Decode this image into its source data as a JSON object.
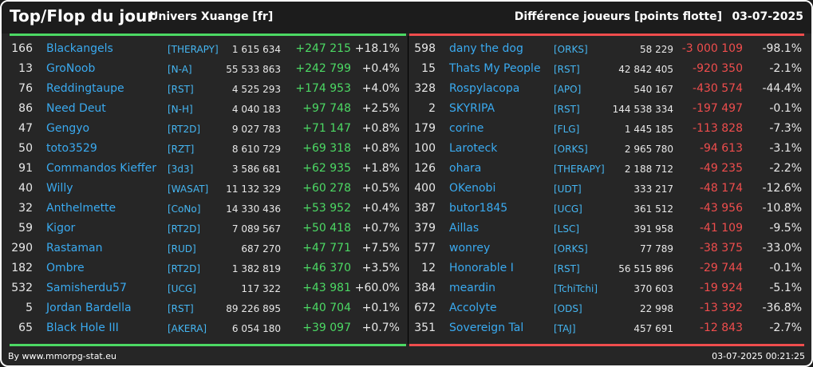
{
  "header": {
    "title": "Top/Flop du jour",
    "universe": "Univers Xuange [fr]",
    "metric": "Différence joueurs [points flotte]",
    "date": "03-07-2025"
  },
  "colors": {
    "positive": "#4cd964",
    "negative": "#ef4d4d",
    "name": "#3aaaf0",
    "background": "#262626"
  },
  "top": [
    {
      "rank": "166",
      "name": "Blackangels",
      "alliance": "[THERAPY]",
      "points": "1 615 634",
      "diff": "+247 215",
      "pct": "+18.1%"
    },
    {
      "rank": "13",
      "name": "GroNoob",
      "alliance": "[N-A]",
      "points": "55 533 863",
      "diff": "+242 799",
      "pct": "+0.4%"
    },
    {
      "rank": "76",
      "name": "Reddingtaupe",
      "alliance": "[RST]",
      "points": "4 525 293",
      "diff": "+174 953",
      "pct": "+4.0%"
    },
    {
      "rank": "86",
      "name": "Need Deut",
      "alliance": "[N-H]",
      "points": "4 040 183",
      "diff": "+97 748",
      "pct": "+2.5%"
    },
    {
      "rank": "47",
      "name": "Gengyo",
      "alliance": "[RT2D]",
      "points": "9 027 783",
      "diff": "+71 147",
      "pct": "+0.8%"
    },
    {
      "rank": "50",
      "name": "toto3529",
      "alliance": "[RZT]",
      "points": "8 610 729",
      "diff": "+69 318",
      "pct": "+0.8%"
    },
    {
      "rank": "91",
      "name": "Commandos Kieffer",
      "alliance": "[3d3]",
      "points": "3 586 681",
      "diff": "+62 935",
      "pct": "+1.8%"
    },
    {
      "rank": "40",
      "name": "Willy",
      "alliance": "[WASAT]",
      "points": "11 132 329",
      "diff": "+60 278",
      "pct": "+0.5%"
    },
    {
      "rank": "32",
      "name": "Anthelmette",
      "alliance": "[CoNo]",
      "points": "14 330 436",
      "diff": "+53 952",
      "pct": "+0.4%"
    },
    {
      "rank": "59",
      "name": "Kigor",
      "alliance": "[RT2D]",
      "points": "7 089 567",
      "diff": "+50 418",
      "pct": "+0.7%"
    },
    {
      "rank": "290",
      "name": "Rastaman",
      "alliance": "[RUD]",
      "points": "687 270",
      "diff": "+47 771",
      "pct": "+7.5%"
    },
    {
      "rank": "182",
      "name": "Ombre",
      "alliance": "[RT2D]",
      "points": "1 382 819",
      "diff": "+46 370",
      "pct": "+3.5%"
    },
    {
      "rank": "532",
      "name": "Samisherdu57",
      "alliance": "[UCG]",
      "points": "117 322",
      "diff": "+43 981",
      "pct": "+60.0%"
    },
    {
      "rank": "5",
      "name": "Jordan Bardella",
      "alliance": "[RST]",
      "points": "89 226 895",
      "diff": "+40 704",
      "pct": "+0.1%"
    },
    {
      "rank": "65",
      "name": "Black Hole III",
      "alliance": "[AKERA]",
      "points": "6 054 180",
      "diff": "+39 097",
      "pct": "+0.7%"
    }
  ],
  "flop": [
    {
      "rank": "598",
      "name": "dany the dog",
      "alliance": "[ORKS]",
      "points": "58 229",
      "diff": "-3 000 109",
      "pct": "-98.1%"
    },
    {
      "rank": "15",
      "name": "Thats My People",
      "alliance": "[RST]",
      "points": "42 842 405",
      "diff": "-920 350",
      "pct": "-2.1%"
    },
    {
      "rank": "328",
      "name": "Rospylacopa",
      "alliance": "[APO]",
      "points": "540 167",
      "diff": "-430 574",
      "pct": "-44.4%"
    },
    {
      "rank": "2",
      "name": "SKYRIPA",
      "alliance": "[RST]",
      "points": "144 538 334",
      "diff": "-197 497",
      "pct": "-0.1%"
    },
    {
      "rank": "179",
      "name": "corine",
      "alliance": "[FLG]",
      "points": "1 445 185",
      "diff": "-113 828",
      "pct": "-7.3%"
    },
    {
      "rank": "100",
      "name": "Laroteck",
      "alliance": "[ORKS]",
      "points": "2 965 780",
      "diff": "-94 613",
      "pct": "-3.1%"
    },
    {
      "rank": "126",
      "name": "ohara",
      "alliance": "[THERAPY]",
      "points": "2 188 712",
      "diff": "-49 235",
      "pct": "-2.2%"
    },
    {
      "rank": "400",
      "name": "OKenobi",
      "alliance": "[UDT]",
      "points": "333 217",
      "diff": "-48 174",
      "pct": "-12.6%"
    },
    {
      "rank": "387",
      "name": "butor1845",
      "alliance": "[UCG]",
      "points": "361 512",
      "diff": "-43 956",
      "pct": "-10.8%"
    },
    {
      "rank": "379",
      "name": "Aillas",
      "alliance": "[LSC]",
      "points": "391 958",
      "diff": "-41 109",
      "pct": "-9.5%"
    },
    {
      "rank": "577",
      "name": "wonrey",
      "alliance": "[ORKS]",
      "points": "77 789",
      "diff": "-38 375",
      "pct": "-33.0%"
    },
    {
      "rank": "12",
      "name": "Honorable I",
      "alliance": "[RST]",
      "points": "56 515 896",
      "diff": "-29 744",
      "pct": "-0.1%"
    },
    {
      "rank": "384",
      "name": "meardin",
      "alliance": "[TchiTchi]",
      "points": "370 603",
      "diff": "-19 924",
      "pct": "-5.1%"
    },
    {
      "rank": "672",
      "name": "Accolyte",
      "alliance": "[ODS]",
      "points": "22 998",
      "diff": "-13 392",
      "pct": "-36.8%"
    },
    {
      "rank": "351",
      "name": "Sovereign Tal",
      "alliance": "[TAJ]",
      "points": "457 691",
      "diff": "-12 843",
      "pct": "-2.7%"
    }
  ],
  "footer": {
    "source": "By www.mmorpg-stat.eu",
    "timestamp": "03-07-2025 00:21:25"
  }
}
